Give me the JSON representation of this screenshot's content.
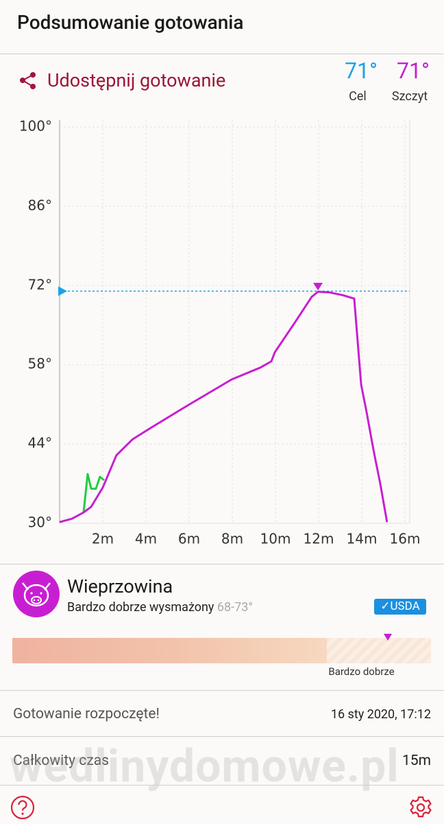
{
  "header": {
    "title": "Podsumowanie gotowania"
  },
  "share": {
    "label": "Udostępnij gotowanie"
  },
  "summary": {
    "target": {
      "value": "71°",
      "label": "Cel"
    },
    "peak": {
      "value": "71°",
      "label": "Szczyt"
    }
  },
  "chart_data": {
    "type": "line",
    "xlim": [
      0,
      16
    ],
    "ylim": [
      30,
      100
    ],
    "xticks": [
      {
        "value": 2,
        "label": "2m"
      },
      {
        "value": 4,
        "label": "4m"
      },
      {
        "value": 6,
        "label": "6m"
      },
      {
        "value": 8,
        "label": "8m"
      },
      {
        "value": 10,
        "label": "10m"
      },
      {
        "value": 12,
        "label": "12m"
      },
      {
        "value": 14,
        "label": "14m"
      },
      {
        "value": 16,
        "label": "16m"
      }
    ],
    "yticks": [
      {
        "value": 30,
        "label": "30°"
      },
      {
        "value": 44,
        "label": "44°"
      },
      {
        "value": 58,
        "label": "58°"
      },
      {
        "value": 72,
        "label": "72°"
      },
      {
        "value": 86,
        "label": "86°"
      },
      {
        "value": 100,
        "label": "100°"
      }
    ],
    "grid": true,
    "target": 71,
    "target_color": "#1aa3e8",
    "series": [
      {
        "color": "#c81ed2",
        "x": [
          0,
          0.57,
          1.11,
          1.46,
          2.0,
          2.63,
          3.37,
          4.16,
          5.97,
          7.97,
          9.3,
          9.81,
          9.97,
          10.89,
          11.68,
          11.97,
          12.48,
          13.11,
          13.65,
          13.97,
          14.22,
          14.54,
          14.86,
          15.17
        ],
        "values": [
          30.2,
          30.8,
          31.9,
          32.9,
          36.3,
          42.0,
          44.8,
          46.7,
          50.9,
          55.4,
          57.5,
          58.6,
          60.2,
          65.4,
          70.0,
          70.9,
          70.8,
          70.3,
          69.7,
          54.5,
          49.7,
          43.0,
          36.9,
          30.2
        ]
      },
      {
        "color": "#22cc44",
        "x": [
          1.11,
          1.3,
          1.46,
          1.68,
          1.87,
          2.06
        ],
        "values": [
          31.9,
          38.7,
          36.1,
          36.1,
          38.2,
          37.6
        ]
      }
    ]
  },
  "meat": {
    "name": "Wieprzowina",
    "doneness": "Bardzo dobrze wysmażony",
    "range": "68-73°",
    "badge": "USDA",
    "scale_label": "Bardzo dobrze"
  },
  "details": [
    {
      "label": "Gotowanie rozpoczęte!",
      "value": "16 sty 2020, 17:12"
    },
    {
      "label": "Całkowity czas",
      "value": "15m"
    }
  ],
  "watermark": "wedlinydomowe.pl"
}
